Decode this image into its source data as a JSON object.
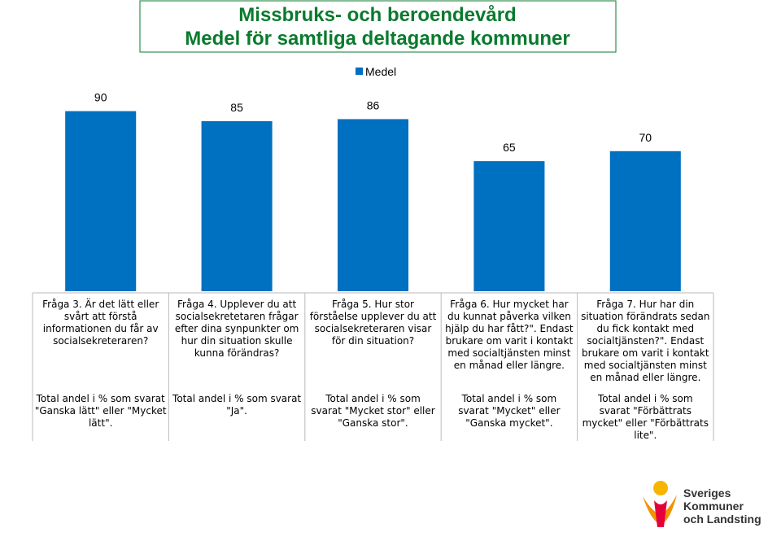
{
  "chart_data": {
    "type": "bar",
    "title": [
      "Missbruks- och beroendevård",
      "Medel för samtliga deltagande kommuner"
    ],
    "legend": "Medel",
    "color": "#0070c0",
    "categories": [
      "Fråga 3. Är det lätt eller\nsvårt att förstå\ninformationen du får av\nsocialsekreteraren?",
      "Fråga 4. Upplever du att\nsocialsekretetaren frågar\nefter dina synpunkter om\nhur din situation skulle\nkunna förändras?",
      "Fråga 5. Hur stor\nförståelse upplever du att\nsocialsekreteraren visar\nför din situation?",
      "Fråga 6. Hur mycket har\ndu kunnat påverka vilken\nhjälp du har fått?\". Endast\nbrukare om varit i kontakt\nmed socialtjänsten minst\nen månad eller längre.",
      "Fråga 7. Hur har din\nsituation förändrats sedan\ndu fick kontakt med\nsocialtjänsten?\". Endast\nbrukare om varit i kontakt\nmed socialtjänsten minst\nen månad eller längre."
    ],
    "notes": [
      "Total andel i % som svarat\n\"Ganska lätt\" eller \"Mycket\nlätt\".",
      "Total andel i % som svarat\n\"Ja\".",
      "Total andel  i % som\nsvarat \"Mycket stor\" eller\n\"Ganska stor\".",
      "Total andel  i % som\nsvarat \"Mycket\" eller\n\"Ganska mycket\".",
      "Total andel  i % som\nsvarat \"Förbättrats\nmycket\" eller \"Förbättrats\nlite\"."
    ],
    "values": [
      90,
      85,
      86,
      65,
      70
    ],
    "ylim": [
      0,
      100
    ],
    "logo_text": [
      "Sveriges",
      "Kommuner",
      "och Landsting"
    ]
  }
}
